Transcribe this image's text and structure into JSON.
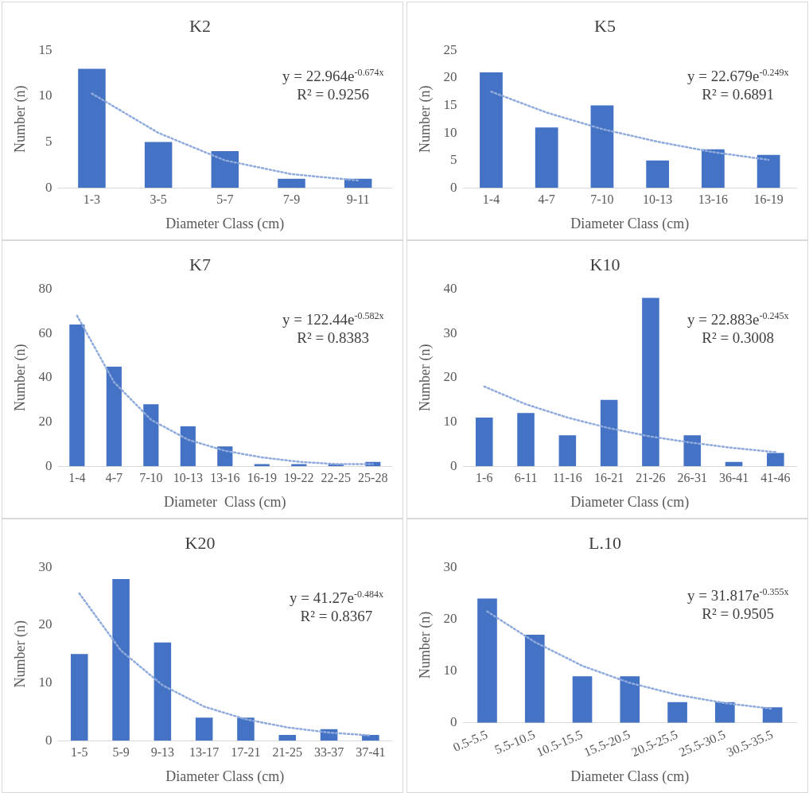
{
  "chart_data": [
    {
      "type": "bar",
      "title": "K2",
      "xlabel": "Diameter Class (cm)",
      "ylabel": "Number (n)",
      "categories": [
        "1-3",
        "3-5",
        "5-7",
        "7-9",
        "9-11"
      ],
      "ylim": [
        0,
        15
      ],
      "yticks": [
        0,
        5,
        10,
        15
      ],
      "grid": false,
      "legend": false,
      "annotations": [
        "y = 22.964e$^{-0.674x}$",
        "R² = 0.9256"
      ],
      "series": [
        {
          "color": "#4472c4",
          "values": [
            13,
            5,
            4,
            1,
            1
          ]
        },
        {
          "type": "line",
          "color": "#8faadc",
          "line_style": "dotted",
          "marker": "none",
          "values": [
            10.3,
            6,
            3,
            1.5,
            0.8
          ]
        }
      ]
    },
    {
      "type": "bar",
      "title": "K5",
      "xlabel": "Diameter Class (cm)",
      "ylabel": "Number (n)",
      "categories": [
        "1-4",
        "4-7",
        "7-10",
        "10-13",
        "13-16",
        "16-19"
      ],
      "ylim": [
        0,
        25
      ],
      "yticks": [
        0,
        5,
        10,
        15,
        20,
        25
      ],
      "grid": false,
      "legend": false,
      "annotations": [
        "y = 22.679e$^{-0.249x}$",
        "R² = 0.6891"
      ],
      "series": [
        {
          "color": "#4472c4",
          "values": [
            21,
            11,
            15,
            5,
            7,
            6
          ]
        },
        {
          "type": "line",
          "color": "#8faadc",
          "line_style": "dotted",
          "marker": "none",
          "values": [
            17.5,
            13.7,
            10.7,
            8.4,
            6.5,
            5.1
          ]
        }
      ]
    },
    {
      "type": "bar",
      "title": "K7",
      "xlabel": "Diameter  Class (cm)",
      "ylabel": "Number (n)",
      "categories": [
        "1-4",
        "4-7",
        "7-10",
        "10-13",
        "13-16",
        "16-19",
        "19-22",
        "22-25",
        "25-28"
      ],
      "ylim": [
        0,
        80
      ],
      "yticks": [
        0,
        20,
        40,
        60,
        80
      ],
      "grid": false,
      "legend": false,
      "annotations": [
        "y = 122.44e$^{-0.582x}$",
        "R² = 0.8383"
      ],
      "series": [
        {
          "color": "#4472c4",
          "values": [
            64,
            45,
            28,
            18,
            9,
            1,
            1,
            1,
            2
          ]
        },
        {
          "type": "line",
          "color": "#8faadc",
          "line_style": "dotted",
          "marker": "none",
          "values": [
            68,
            38,
            21,
            12,
            7,
            4,
            2,
            1,
            1
          ]
        }
      ]
    },
    {
      "type": "bar",
      "title": "K10",
      "xlabel": "Diameter Class (cm)",
      "ylabel": "Number (n)",
      "categories": [
        "1-6",
        "6-11",
        "11-16",
        "16-21",
        "21-26",
        "26-31",
        "36-41",
        "41-46"
      ],
      "ylim": [
        0,
        40
      ],
      "yticks": [
        0,
        10,
        20,
        30,
        40
      ],
      "grid": false,
      "legend": false,
      "annotations": [
        "y = 22.883e$^{-0.245x}$",
        "R² = 0.3008"
      ],
      "series": [
        {
          "color": "#4472c4",
          "values": [
            11,
            12,
            7,
            15,
            38,
            7,
            1,
            3
          ]
        },
        {
          "type": "line",
          "color": "#8faadc",
          "line_style": "dotted",
          "marker": "none",
          "values": [
            18,
            14,
            11,
            8.6,
            6.7,
            5.3,
            4.1,
            3.2
          ]
        }
      ]
    },
    {
      "type": "bar",
      "title": "K20",
      "xlabel": "Diameter Class (cm)",
      "ylabel": "Number (n)",
      "categories": [
        "1-5",
        "5-9",
        "9-13",
        "13-17",
        "17-21",
        "21-25",
        "33-37",
        "37-41"
      ],
      "ylim": [
        0,
        30
      ],
      "yticks": [
        0,
        10,
        20,
        30
      ],
      "grid": false,
      "legend": false,
      "annotations": [
        "y = 41.27e$^{-0.484x}$",
        "R² = 0.8367"
      ],
      "series": [
        {
          "color": "#4472c4",
          "values": [
            15,
            28,
            17,
            4,
            4,
            1,
            2,
            1
          ]
        },
        {
          "type": "line",
          "color": "#8faadc",
          "line_style": "dotted",
          "marker": "none",
          "values": [
            25.5,
            15.6,
            9.6,
            5.9,
            3.7,
            2.3,
            1.4,
            0.9
          ]
        }
      ]
    },
    {
      "type": "bar",
      "title": "L.10",
      "xlabel": "Diameter Class (cm)",
      "ylabel": "Number (n)",
      "categories": [
        "0.5-5.5",
        "5.5-10.5",
        "10.5-15.5",
        "15.5-20.5",
        "20.5-25.5",
        "25.5-30.5",
        "30.5-35.5"
      ],
      "ylim": [
        0,
        30
      ],
      "yticks": [
        0,
        10,
        20,
        30
      ],
      "grid": false,
      "legend": false,
      "annotations": [
        "y = 31.817e$^{-0.355x}$",
        "R² = 0.9505"
      ],
      "series": [
        {
          "color": "#4472c4",
          "values": [
            24,
            17,
            9,
            9,
            4,
            4,
            3
          ]
        },
        {
          "type": "line",
          "color": "#8faadc",
          "line_style": "dotted",
          "marker": "none",
          "values": [
            21.5,
            15.6,
            11,
            7.7,
            5.4,
            3.8,
            2.7
          ]
        }
      ]
    }
  ]
}
